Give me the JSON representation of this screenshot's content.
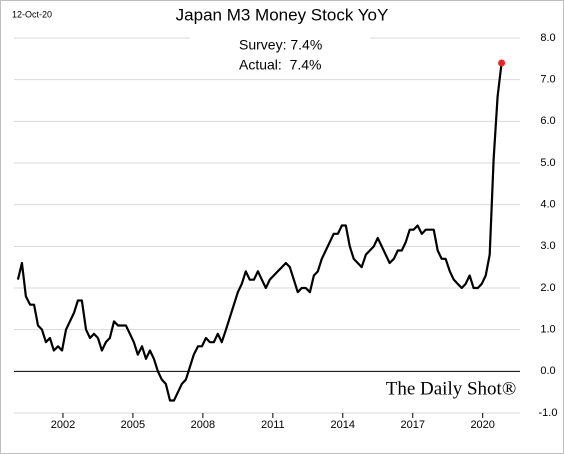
{
  "chart_data": {
    "type": "line",
    "title": "Japan M3 Money Stock YoY",
    "date": "12-Oct-20",
    "annotations": [
      "Survey: 7.4%",
      "Actual:  7.4%"
    ],
    "source": "The Daily Shot®",
    "xlim": [
      1999.9,
      2021.6
    ],
    "xticks": [
      2002,
      2005,
      2008,
      2011,
      2014,
      2017,
      2020
    ],
    "ylim": [
      -1,
      8
    ],
    "yticks": [
      {
        "value": -1,
        "label": "-1.0"
      },
      {
        "value": 0,
        "label": "0.0"
      },
      {
        "value": 1,
        "label": "1.0"
      },
      {
        "value": 2,
        "label": "2.0"
      },
      {
        "value": 3,
        "label": "3.0"
      },
      {
        "value": 4,
        "label": "4.0"
      },
      {
        "value": 5,
        "label": "5.0"
      },
      {
        "value": 6,
        "label": "6.0"
      },
      {
        "value": 7,
        "label": "7.0"
      },
      {
        "value": 8,
        "label": "8.0"
      }
    ],
    "grid": true,
    "zero_line": true,
    "end_marker_color": "#e8262a",
    "series": [
      {
        "color": "#000000",
        "x": [
          2000.07,
          2000.24,
          2000.41,
          2000.59,
          2000.76,
          2000.93,
          2001.1,
          2001.27,
          2001.44,
          2001.61,
          2001.79,
          2001.96,
          2002.13,
          2002.3,
          2002.47,
          2002.64,
          2002.81,
          2002.99,
          2003.16,
          2003.33,
          2003.5,
          2003.67,
          2003.84,
          2004.01,
          2004.19,
          2004.36,
          2004.53,
          2004.7,
          2004.87,
          2005.04,
          2005.21,
          2005.39,
          2005.56,
          2005.73,
          2005.9,
          2006.07,
          2006.24,
          2006.41,
          2006.59,
          2006.76,
          2006.93,
          2007.1,
          2007.27,
          2007.44,
          2007.61,
          2007.79,
          2007.96,
          2008.13,
          2008.3,
          2008.47,
          2008.64,
          2008.81,
          2008.99,
          2009.16,
          2009.33,
          2009.5,
          2009.67,
          2009.84,
          2010.01,
          2010.19,
          2010.36,
          2010.53,
          2010.7,
          2010.87,
          2011.04,
          2011.21,
          2011.39,
          2011.56,
          2011.73,
          2011.9,
          2012.07,
          2012.24,
          2012.41,
          2012.59,
          2012.76,
          2012.93,
          2013.1,
          2013.27,
          2013.44,
          2013.61,
          2013.79,
          2013.96,
          2014.13,
          2014.3,
          2014.47,
          2014.64,
          2014.81,
          2014.99,
          2015.16,
          2015.33,
          2015.5,
          2015.67,
          2015.84,
          2016.01,
          2016.19,
          2016.36,
          2016.53,
          2016.7,
          2016.87,
          2017.04,
          2017.21,
          2017.39,
          2017.56,
          2017.73,
          2017.9,
          2018.07,
          2018.24,
          2018.41,
          2018.59,
          2018.76,
          2018.93,
          2019.1,
          2019.27,
          2019.44,
          2019.61,
          2019.79,
          2019.96,
          2020.13,
          2020.3,
          2020.47,
          2020.64,
          2020.81
        ],
        "values": [
          2.2,
          2.6,
          1.8,
          1.6,
          1.6,
          1.1,
          1.0,
          0.7,
          0.8,
          0.5,
          0.6,
          0.5,
          1.0,
          1.2,
          1.4,
          1.7,
          1.7,
          1.0,
          0.8,
          0.9,
          0.8,
          0.5,
          0.7,
          0.8,
          1.2,
          1.1,
          1.1,
          1.1,
          0.9,
          0.7,
          0.4,
          0.6,
          0.3,
          0.5,
          0.3,
          0.0,
          -0.2,
          -0.3,
          -0.7,
          -0.7,
          -0.5,
          -0.3,
          -0.2,
          0.1,
          0.4,
          0.6,
          0.6,
          0.8,
          0.7,
          0.7,
          0.9,
          0.7,
          1.0,
          1.3,
          1.6,
          1.9,
          2.1,
          2.4,
          2.2,
          2.2,
          2.4,
          2.2,
          2.0,
          2.2,
          2.3,
          2.4,
          2.5,
          2.6,
          2.5,
          2.2,
          1.9,
          2.0,
          2.0,
          1.9,
          2.3,
          2.4,
          2.7,
          2.9,
          3.1,
          3.3,
          3.3,
          3.5,
          3.5,
          3.0,
          2.7,
          2.6,
          2.5,
          2.8,
          2.9,
          3.0,
          3.2,
          3.0,
          2.8,
          2.6,
          2.7,
          2.9,
          2.9,
          3.1,
          3.4,
          3.4,
          3.5,
          3.3,
          3.4,
          3.4,
          3.4,
          2.9,
          2.7,
          2.7,
          2.4,
          2.2,
          2.1,
          2.0,
          2.1,
          2.3,
          2.0,
          2.0,
          2.1,
          2.3,
          2.8,
          5.1,
          6.6,
          7.4
        ]
      }
    ]
  }
}
